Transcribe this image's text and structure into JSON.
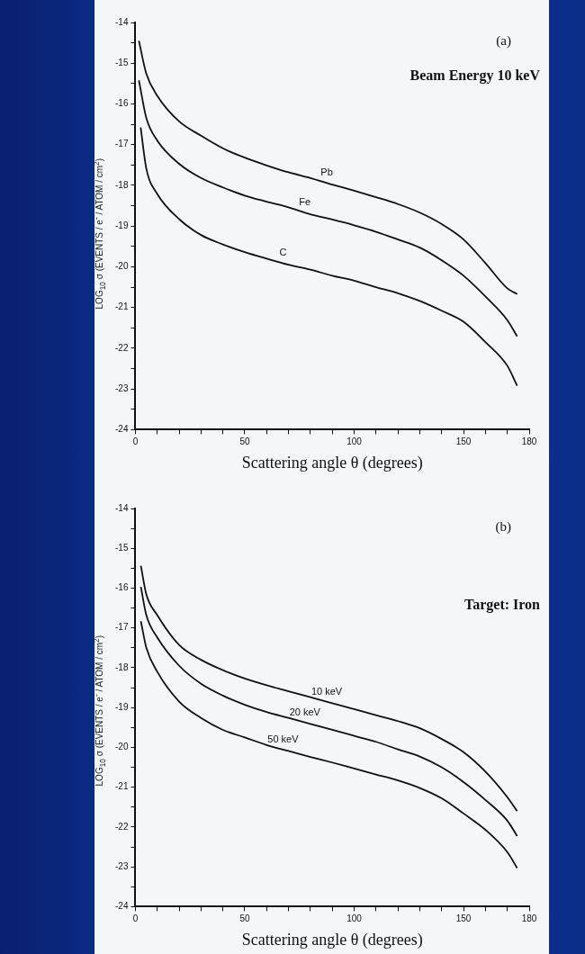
{
  "chart_data": [
    {
      "type": "line",
      "title": "Beam Energy 10 keV",
      "annotations": [
        "(a)"
      ],
      "xlabel": "Scattering angle θ (degrees)",
      "ylabel": "LOG$_{10}$ σ (EVENTS / e$^{-}$ / ATOM / cm$^{2}$)",
      "x": [
        1.6,
        5,
        10,
        20,
        30,
        40,
        50,
        60,
        70,
        80,
        90,
        100,
        110,
        120,
        130,
        140,
        150,
        160,
        170,
        174.5
      ],
      "series": [
        {
          "name": "Pb",
          "color": "#111111",
          "values": [
            -14.45,
            -15.26,
            -15.8,
            -16.43,
            -16.78,
            -17.09,
            -17.32,
            -17.51,
            -17.68,
            -17.82,
            -17.98,
            -18.13,
            -18.29,
            -18.46,
            -18.67,
            -18.95,
            -19.33,
            -19.91,
            -20.53,
            -20.67
          ]
        },
        {
          "name": "Fe",
          "color": "#111111",
          "values": [
            -15.42,
            -16.35,
            -16.9,
            -17.47,
            -17.82,
            -18.05,
            -18.25,
            -18.4,
            -18.54,
            -18.71,
            -18.84,
            -18.98,
            -19.14,
            -19.33,
            -19.53,
            -19.84,
            -20.22,
            -20.73,
            -21.31,
            -21.71
          ]
        },
        {
          "name": "C",
          "color": "#111111",
          "x": [
            2.4,
            5,
            10,
            20,
            30,
            40,
            50,
            60,
            70,
            80,
            90,
            100,
            110,
            120,
            130,
            140,
            150,
            160,
            170,
            174.5
          ],
          "values": [
            -16.58,
            -17.59,
            -18.21,
            -18.83,
            -19.22,
            -19.45,
            -19.64,
            -19.8,
            -19.95,
            -20.07,
            -20.22,
            -20.34,
            -20.5,
            -20.65,
            -20.84,
            -21.08,
            -21.35,
            -21.85,
            -22.43,
            -22.92
          ]
        }
      ],
      "xlim": [
        0,
        180
      ],
      "xticks": [
        0,
        {
          "value": 10,
          "label": null
        },
        {
          "value": 20,
          "label": null
        },
        {
          "value": 30,
          "label": null
        },
        {
          "value": 40,
          "label": null
        },
        50,
        {
          "value": 60,
          "label": null
        },
        {
          "value": 70,
          "label": null
        },
        {
          "value": 80,
          "label": null
        },
        {
          "value": 90,
          "label": null
        },
        100,
        {
          "value": 110,
          "label": null
        },
        {
          "value": 120,
          "label": null
        },
        {
          "value": 130,
          "label": null
        },
        {
          "value": 140,
          "label": null
        },
        150,
        {
          "value": 160,
          "label": null
        },
        {
          "value": 170,
          "label": null
        },
        180
      ],
      "ylim": [
        -24,
        -14
      ],
      "yticks": [
        -24,
        {
          "value": -23.5,
          "label": null
        },
        -23,
        {
          "value": -22.5,
          "label": null
        },
        -22,
        {
          "value": -21.5,
          "label": null
        },
        -21,
        {
          "value": -20.5,
          "label": null
        },
        -20,
        {
          "value": -19.5,
          "label": null
        },
        -19,
        {
          "value": -18.5,
          "label": null
        },
        -18,
        {
          "value": -17.5,
          "label": null
        },
        -17,
        {
          "value": -16.5,
          "label": null
        },
        -16,
        {
          "value": -15.5,
          "label": null
        },
        -15,
        {
          "value": -14.5,
          "label": null
        },
        -14
      ],
      "grid": false,
      "legend": false,
      "marker": "none",
      "line_style": "solid"
    },
    {
      "type": "line",
      "title": "Target: Iron",
      "annotations": [
        "(b)"
      ],
      "xlabel": "Scattering angle θ (degrees)",
      "ylabel": "LOG$_{10}$ σ (EVENTS / e$^{-}$ / ATOM / cm$^{2}$)",
      "x": [
        2.5,
        5,
        10,
        20,
        30,
        40,
        50,
        60,
        70,
        80,
        90,
        100,
        110,
        120,
        130,
        140,
        150,
        160,
        170,
        174.5
      ],
      "series": [
        {
          "name": "10 keV",
          "color": "#111111",
          "values": [
            -15.44,
            -16.16,
            -16.68,
            -17.43,
            -17.8,
            -18.06,
            -18.27,
            -18.44,
            -18.59,
            -18.74,
            -18.89,
            -19.04,
            -19.19,
            -19.34,
            -19.52,
            -19.79,
            -20.12,
            -20.61,
            -21.25,
            -21.6
          ]
        },
        {
          "name": "20 keV",
          "color": "#111111",
          "values": [
            -15.97,
            -16.68,
            -17.24,
            -17.95,
            -18.4,
            -18.7,
            -18.93,
            -19.11,
            -19.26,
            -19.41,
            -19.56,
            -19.71,
            -19.86,
            -20.05,
            -20.23,
            -20.5,
            -20.87,
            -21.32,
            -21.84,
            -22.23
          ]
        },
        {
          "name": "50 keV",
          "color": "#111111",
          "values": [
            -16.83,
            -17.5,
            -18.1,
            -18.85,
            -19.26,
            -19.56,
            -19.75,
            -19.94,
            -20.09,
            -20.24,
            -20.38,
            -20.53,
            -20.68,
            -20.83,
            -21.02,
            -21.28,
            -21.66,
            -22.07,
            -22.63,
            -23.03
          ]
        }
      ],
      "xlim": [
        0,
        180
      ],
      "xticks": [
        0,
        {
          "value": 10,
          "label": null
        },
        {
          "value": 20,
          "label": null
        },
        {
          "value": 30,
          "label": null
        },
        {
          "value": 40,
          "label": null
        },
        50,
        {
          "value": 60,
          "label": null
        },
        {
          "value": 70,
          "label": null
        },
        {
          "value": 80,
          "label": null
        },
        {
          "value": 90,
          "label": null
        },
        100,
        {
          "value": 110,
          "label": null
        },
        {
          "value": 120,
          "label": null
        },
        {
          "value": 130,
          "label": null
        },
        {
          "value": 140,
          "label": null
        },
        150,
        {
          "value": 160,
          "label": null
        },
        {
          "value": 170,
          "label": null
        },
        180
      ],
      "ylim": [
        -24,
        -14
      ],
      "yticks": [
        -24,
        {
          "value": -23.5,
          "label": null
        },
        -23,
        {
          "value": -22.5,
          "label": null
        },
        -22,
        {
          "value": -21.5,
          "label": null
        },
        -21,
        {
          "value": -20.5,
          "label": null
        },
        -20,
        {
          "value": -19.5,
          "label": null
        },
        -19,
        {
          "value": -18.5,
          "label": null
        },
        -18,
        {
          "value": -17.5,
          "label": null
        },
        -17,
        {
          "value": -16.5,
          "label": null
        },
        -16,
        {
          "value": -15.5,
          "label": null
        },
        -15,
        {
          "value": -14.5,
          "label": null
        },
        -14
      ],
      "grid": false,
      "legend": false,
      "marker": "none",
      "line_style": "solid"
    }
  ]
}
